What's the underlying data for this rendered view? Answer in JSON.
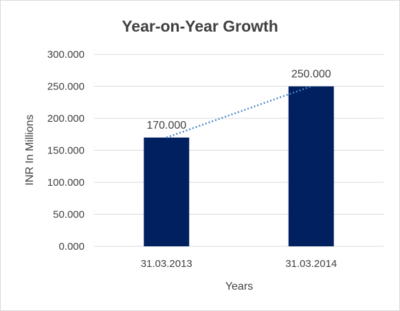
{
  "chart_data": {
    "type": "bar",
    "title": "Year-on-Year Growth",
    "xlabel": "Years",
    "ylabel": "INR In Millions",
    "categories": [
      "31.03.2013",
      "31.03.2014"
    ],
    "values": [
      170,
      250
    ],
    "data_labels": [
      "170.000",
      "250.000"
    ],
    "ylim": [
      0,
      300
    ],
    "y_ticks": [
      0,
      50,
      100,
      150,
      200,
      250,
      300
    ],
    "y_tick_labels": [
      "0.000",
      "50.000",
      "100.000",
      "150.000",
      "200.000",
      "250.000",
      "300.000"
    ],
    "grid": true,
    "legend": "none",
    "trendline": "linear",
    "colors": {
      "bar": "#002060",
      "trendline": "#4a86c8",
      "grid": "#d9d9d9",
      "text": "#404040"
    }
  }
}
